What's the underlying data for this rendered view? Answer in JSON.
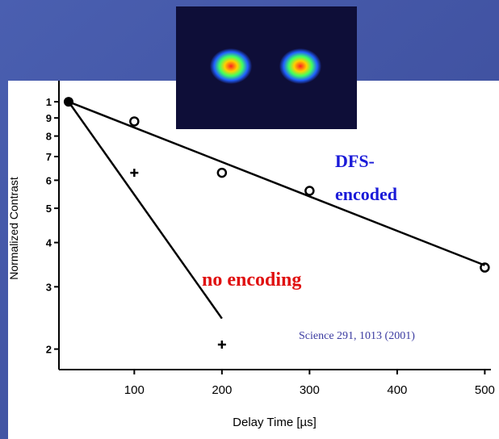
{
  "chart_data": {
    "type": "scatter",
    "x_label": "Delay Time  [µs]",
    "y_label": "Normalized Contrast",
    "log_y": true,
    "xlim": [
      14,
      507
    ],
    "xticks": [
      100,
      200,
      300,
      400,
      500
    ],
    "ylim": [
      0.175,
      1.06
    ],
    "yticks": [
      1,
      {
        "value": 0.9,
        "label": "9"
      },
      {
        "value": 0.8,
        "label": "8"
      },
      {
        "value": 0.7,
        "label": "7"
      },
      {
        "value": 0.6,
        "label": "6"
      },
      {
        "value": 0.5,
        "label": "5"
      },
      {
        "value": 0.4,
        "label": "4"
      },
      {
        "value": 0.3,
        "label": "3"
      },
      {
        "value": 0.2,
        "label": "2"
      }
    ],
    "series": [
      {
        "marker": "line",
        "color": "#000000",
        "x": [
          25,
          500
        ],
        "values": [
          1,
          0.345
        ]
      },
      {
        "marker": "line",
        "color": "#000000",
        "x": [
          25,
          200
        ],
        "values": [
          1,
          0.244
        ]
      },
      {
        "marker": "circle",
        "color": "#000000",
        "x": [
          100,
          200,
          300,
          500
        ],
        "values": [
          0.88,
          0.63,
          0.56,
          0.34
        ]
      },
      {
        "marker": "plus",
        "color": "#000000",
        "x": [
          100,
          200
        ],
        "values": [
          0.63,
          0.206
        ]
      },
      {
        "marker": "dot",
        "color": "#000000",
        "x": [
          25
        ],
        "values": [
          1
        ]
      }
    ],
    "annotations": [
      {
        "text": "DFS-",
        "color": "#1a1ad8"
      },
      {
        "text": "encoded",
        "color": "#1a1ad8"
      },
      {
        "text": "no encoding",
        "color": "#e01010"
      },
      {
        "text": "Science 291, 1013 (2001)",
        "color": "#3a3aa0"
      }
    ]
  }
}
